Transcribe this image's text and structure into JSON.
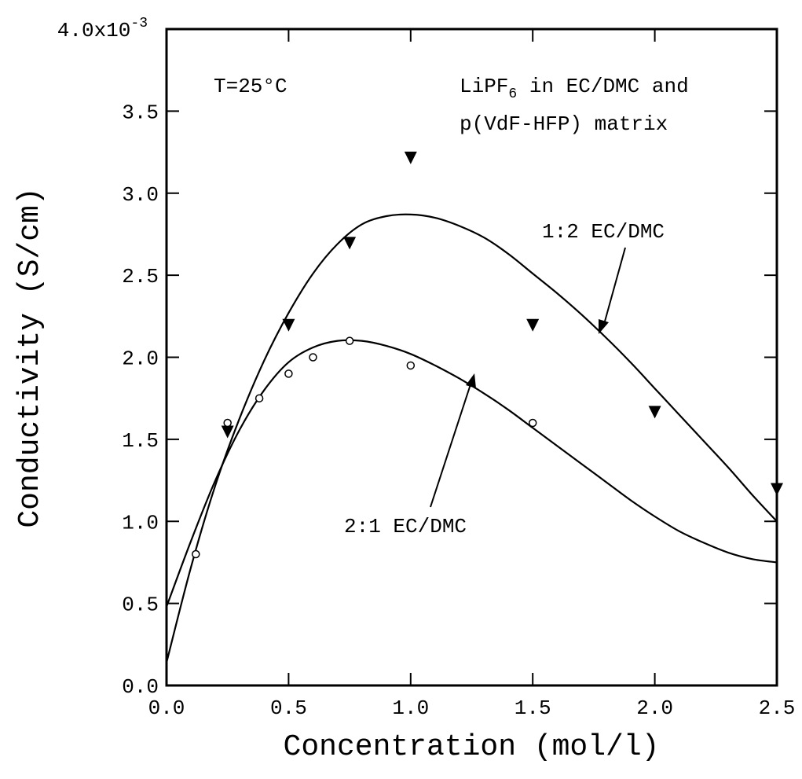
{
  "chart_data": {
    "type": "line",
    "xlabel": "Concentration (mol/l)",
    "ylabel": "Conductivity (S/cm)",
    "xlim": [
      0.0,
      2.5
    ],
    "ylim": [
      0.0,
      0.004
    ],
    "x_ticks": [
      "0.0",
      "0.5",
      "1.0",
      "1.5",
      "2.0",
      "2.5"
    ],
    "y_ticks": [
      "0.0",
      "0.5",
      "1.0",
      "1.5",
      "2.0",
      "2.5",
      "3.0",
      "3.5",
      "4.0x10"
    ],
    "y_tick_top_exponent": "-3",
    "grid": false,
    "annotations": {
      "temperature": "T=25°C",
      "system_line1_prefix": "LiPF",
      "system_line1_subscript": "6",
      "system_line1_suffix": " in EC/DMC and",
      "system_line2": "p(VdF-HFP) matrix"
    },
    "series": [
      {
        "name": "1:2 EC/DMC",
        "marker": "filled-down-triangle",
        "points": {
          "x": [
            0.25,
            0.5,
            0.75,
            1.0,
            1.5,
            2.0,
            2.5
          ],
          "y": [
            0.00155,
            0.0022,
            0.0027,
            0.00322,
            0.0022,
            0.00167,
            0.0012
          ]
        },
        "fit": {
          "x": [
            0.0,
            0.1,
            0.2,
            0.3,
            0.4,
            0.5,
            0.6,
            0.7,
            0.8,
            0.9,
            1.0,
            1.1,
            1.2,
            1.3,
            1.4,
            1.5,
            1.6,
            1.7,
            1.8,
            1.9,
            2.0,
            2.1,
            2.2,
            2.3,
            2.4,
            2.5
          ],
          "y": [
            0.00014,
            0.00072,
            0.00122,
            0.00163,
            0.00198,
            0.00227,
            0.00251,
            0.00269,
            0.00281,
            0.00286,
            0.00287,
            0.00285,
            0.0028,
            0.00273,
            0.00263,
            0.00251,
            0.00239,
            0.00226,
            0.00212,
            0.00197,
            0.00181,
            0.00165,
            0.00149,
            0.00133,
            0.00116,
            0.001
          ]
        }
      },
      {
        "name": "2:1 EC/DMC",
        "marker": "open-circle",
        "points": {
          "x": [
            0.12,
            0.25,
            0.38,
            0.5,
            0.6,
            0.75,
            1.0,
            1.5
          ],
          "y": [
            0.0008,
            0.0016,
            0.00175,
            0.0019,
            0.002,
            0.0021,
            0.00195,
            0.0016
          ]
        },
        "fit": {
          "x": [
            0.0,
            0.1,
            0.2,
            0.3,
            0.4,
            0.5,
            0.6,
            0.7,
            0.8,
            0.9,
            1.0,
            1.1,
            1.2,
            1.3,
            1.4,
            1.5,
            1.6,
            1.7,
            1.8,
            1.9,
            2.0,
            2.1,
            2.2,
            2.3,
            2.4,
            2.5
          ],
          "y": [
            0.00048,
            0.00088,
            0.00125,
            0.00156,
            0.0018,
            0.00197,
            0.00206,
            0.0021,
            0.0021,
            0.00207,
            0.00202,
            0.00195,
            0.00187,
            0.00178,
            0.00168,
            0.00157,
            0.00146,
            0.00135,
            0.00124,
            0.00113,
            0.00103,
            0.00094,
            0.00087,
            0.00081,
            0.00077,
            0.00075
          ]
        }
      }
    ]
  }
}
